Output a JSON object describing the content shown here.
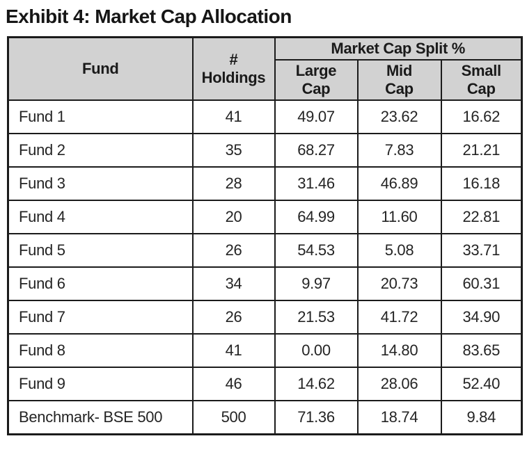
{
  "title": "Exhibit 4: Market Cap Allocation",
  "colors": {
    "header_bg": "#d2d2d2",
    "border": "#1b1b1b",
    "text": "#242424"
  },
  "table": {
    "header": {
      "fund": "Fund",
      "holdings_lines": [
        "#",
        "Holdings"
      ],
      "group": "Market Cap Split %",
      "large_lines": [
        "Large",
        "Cap"
      ],
      "mid_lines": [
        "Mid",
        "Cap"
      ],
      "small_lines": [
        "Small",
        "Cap"
      ]
    },
    "rows": [
      {
        "fund": "Fund 1",
        "holdings": "41",
        "large": "49.07",
        "mid": "23.62",
        "small": "16.62"
      },
      {
        "fund": "Fund 2",
        "holdings": "35",
        "large": "68.27",
        "mid": "7.83",
        "small": "21.21"
      },
      {
        "fund": "Fund 3",
        "holdings": "28",
        "large": "31.46",
        "mid": "46.89",
        "small": "16.18"
      },
      {
        "fund": "Fund 4",
        "holdings": "20",
        "large": "64.99",
        "mid": "11.60",
        "small": "22.81"
      },
      {
        "fund": "Fund 5",
        "holdings": "26",
        "large": "54.53",
        "mid": "5.08",
        "small": "33.71"
      },
      {
        "fund": "Fund 6",
        "holdings": "34",
        "large": "9.97",
        "mid": "20.73",
        "small": "60.31"
      },
      {
        "fund": "Fund 7",
        "holdings": "26",
        "large": "21.53",
        "mid": "41.72",
        "small": "34.90"
      },
      {
        "fund": "Fund 8",
        "holdings": "41",
        "large": "0.00",
        "mid": "14.80",
        "small": "83.65"
      },
      {
        "fund": "Fund 9",
        "holdings": "46",
        "large": "14.62",
        "mid": "28.06",
        "small": "52.40"
      },
      {
        "fund": "Benchmark- BSE 500",
        "holdings": "500",
        "large": "71.36",
        "mid": "18.74",
        "small": "9.84"
      }
    ]
  },
  "chart_data": {
    "type": "table",
    "title": "Exhibit 4: Market Cap Allocation",
    "group_header": "Market Cap Split %",
    "columns": [
      "Fund",
      "# Holdings",
      "Large Cap",
      "Mid Cap",
      "Small Cap"
    ],
    "rows": [
      [
        "Fund 1",
        41,
        49.07,
        23.62,
        16.62
      ],
      [
        "Fund 2",
        35,
        68.27,
        7.83,
        21.21
      ],
      [
        "Fund 3",
        28,
        31.46,
        46.89,
        16.18
      ],
      [
        "Fund 4",
        20,
        64.99,
        11.6,
        22.81
      ],
      [
        "Fund 5",
        26,
        54.53,
        5.08,
        33.71
      ],
      [
        "Fund 6",
        34,
        9.97,
        20.73,
        60.31
      ],
      [
        "Fund 7",
        26,
        21.53,
        41.72,
        34.9
      ],
      [
        "Fund 8",
        41,
        0.0,
        14.8,
        83.65
      ],
      [
        "Fund 9",
        46,
        14.62,
        28.06,
        52.4
      ],
      [
        "Benchmark- BSE 500",
        500,
        71.36,
        18.74,
        9.84
      ]
    ]
  }
}
